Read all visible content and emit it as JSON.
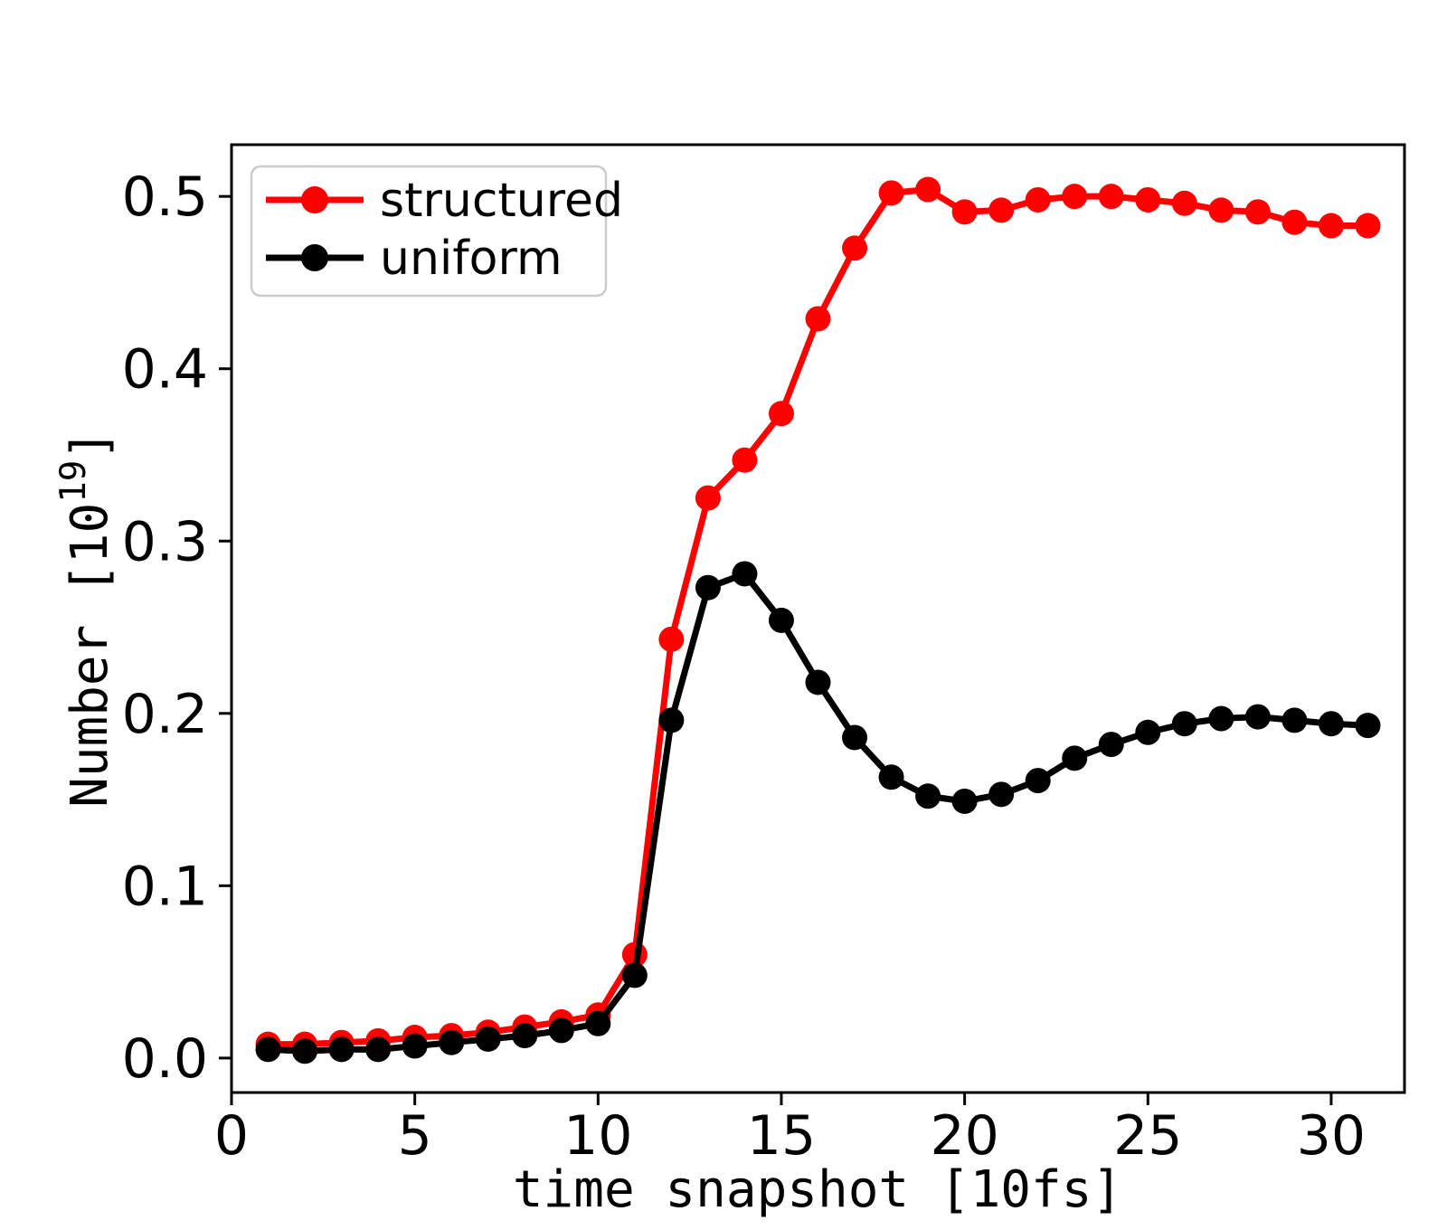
{
  "figure": {
    "background": "#ffffff"
  },
  "chart_data": {
    "type": "line",
    "title": "",
    "xlabel": "time snapshot [10fs]",
    "ylabel": {
      "pre": "Number [10",
      "sup": "19",
      "post": "]"
    },
    "x": [
      1,
      2,
      3,
      4,
      5,
      6,
      7,
      8,
      9,
      10,
      11,
      12,
      13,
      14,
      15,
      16,
      17,
      18,
      19,
      20,
      21,
      22,
      23,
      24,
      25,
      26,
      27,
      28,
      29,
      30,
      31
    ],
    "series": [
      {
        "name": "structured",
        "color": "#ff0000",
        "values": [
          0.008,
          0.008,
          0.009,
          0.01,
          0.012,
          0.013,
          0.015,
          0.018,
          0.021,
          0.025,
          0.06,
          0.243,
          0.325,
          0.347,
          0.374,
          0.429,
          0.47,
          0.502,
          0.504,
          0.491,
          0.492,
          0.498,
          0.5,
          0.5,
          0.498,
          0.496,
          0.492,
          0.491,
          0.485,
          0.483,
          0.483
        ]
      },
      {
        "name": "uniform",
        "color": "#000000",
        "values": [
          0.005,
          0.004,
          0.005,
          0.005,
          0.007,
          0.009,
          0.011,
          0.013,
          0.016,
          0.02,
          0.048,
          0.196,
          0.273,
          0.281,
          0.254,
          0.218,
          0.186,
          0.163,
          0.152,
          0.149,
          0.153,
          0.161,
          0.174,
          0.182,
          0.189,
          0.194,
          0.197,
          0.198,
          0.196,
          0.194,
          0.193
        ]
      }
    ],
    "xlim": [
      0,
      32
    ],
    "ylim": [
      -0.02,
      0.53
    ],
    "xticks": {
      "values": [
        0,
        5,
        10,
        15,
        20,
        25,
        30
      ],
      "labels": [
        "0",
        "5",
        "10",
        "15",
        "20",
        "25",
        "30"
      ]
    },
    "yticks": {
      "values": [
        0,
        0.1,
        0.2,
        0.3,
        0.4,
        0.5
      ],
      "labels": [
        "0.0",
        "0.1",
        "0.2",
        "0.3",
        "0.4",
        "0.5"
      ]
    },
    "legend": {
      "position": "upper left",
      "entries": [
        "structured",
        "uniform"
      ]
    },
    "grid": false,
    "marker": "circle",
    "marker_radius": 14,
    "line_width": 7
  }
}
